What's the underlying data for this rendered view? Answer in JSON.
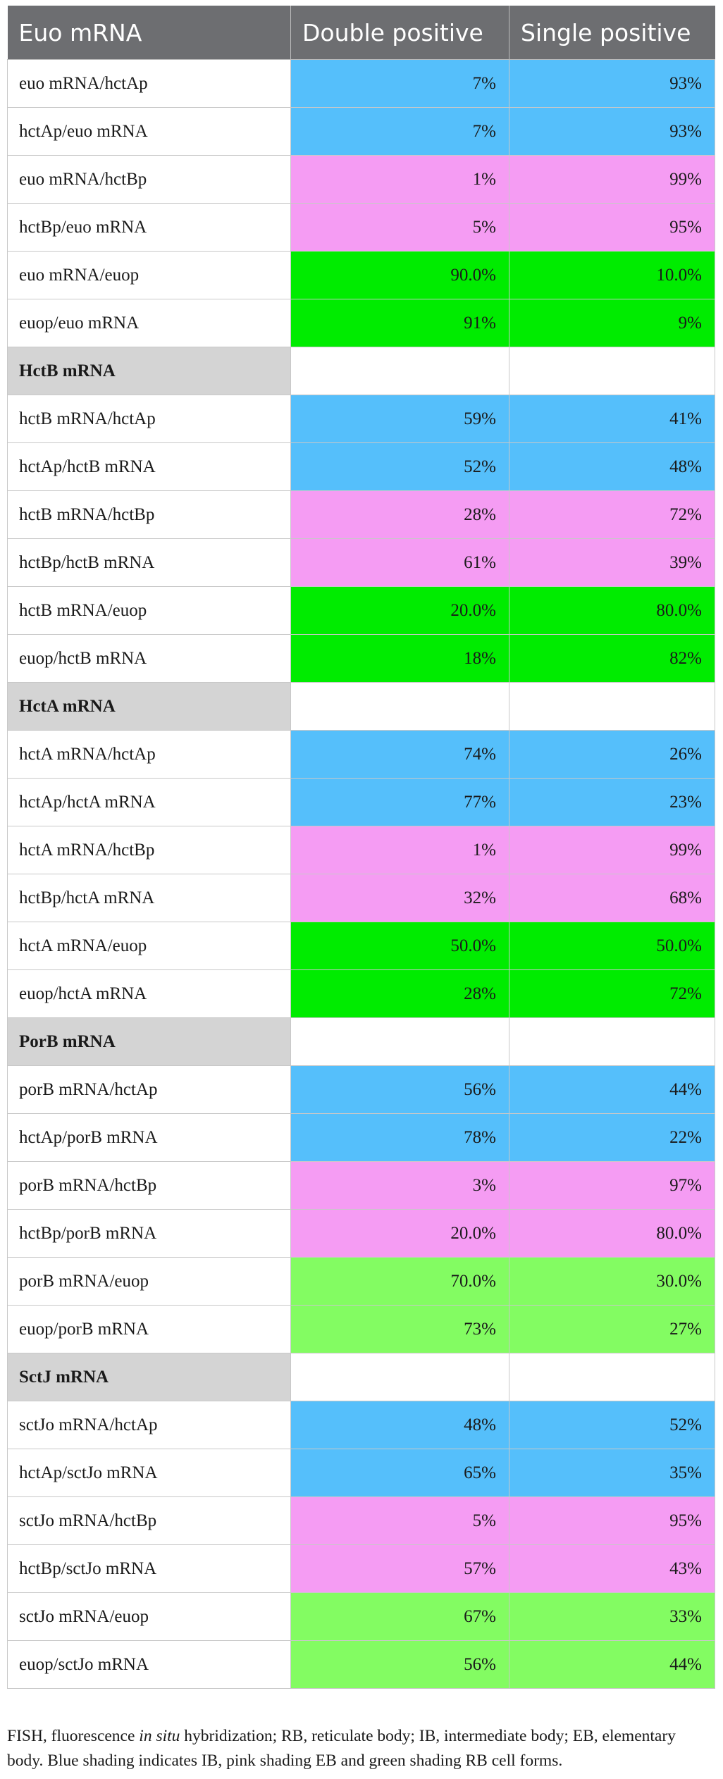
{
  "colors": {
    "header_bg": "#6d6e71",
    "section_bg": "#d4d4d4",
    "blue": "#55bffb",
    "pink": "#f59cf3",
    "green": "#00ec00",
    "light_green": "#83fc62"
  },
  "header": [
    "Euo mRNA",
    "Double positive",
    "Single positive"
  ],
  "rows": [
    {
      "type": "data",
      "label": "euo mRNA/hctAp",
      "double": "7%",
      "single": "93%",
      "shade": "blue"
    },
    {
      "type": "data",
      "label": "hctAp/euo mRNA",
      "double": "7%",
      "single": "93%",
      "shade": "blue"
    },
    {
      "type": "data",
      "label": "euo mRNA/hctBp",
      "double": "1%",
      "single": "99%",
      "shade": "pink"
    },
    {
      "type": "data",
      "label": "hctBp/euo mRNA",
      "double": "5%",
      "single": "95%",
      "shade": "pink"
    },
    {
      "type": "data",
      "label": "euo mRNA/euop",
      "double": "90.0%",
      "single": "10.0%",
      "shade": "green"
    },
    {
      "type": "data",
      "label": "euop/euo mRNA",
      "double": "91%",
      "single": "9%",
      "shade": "green"
    },
    {
      "type": "section",
      "label": "HctB mRNA"
    },
    {
      "type": "data",
      "label": "hctB mRNA/hctAp",
      "double": "59%",
      "single": "41%",
      "shade": "blue"
    },
    {
      "type": "data",
      "label": "hctAp/hctB mRNA",
      "double": "52%",
      "single": "48%",
      "shade": "blue"
    },
    {
      "type": "data",
      "label": "hctB mRNA/hctBp",
      "double": "28%",
      "single": "72%",
      "shade": "pink"
    },
    {
      "type": "data",
      "label": "hctBp/hctB mRNA",
      "double": "61%",
      "single": "39%",
      "shade": "pink"
    },
    {
      "type": "data",
      "label": "hctB mRNA/euop",
      "double": "20.0%",
      "single": "80.0%",
      "shade": "green"
    },
    {
      "type": "data",
      "label": "euop/hctB mRNA",
      "double": "18%",
      "single": "82%",
      "shade": "green"
    },
    {
      "type": "section",
      "label": "HctA mRNA"
    },
    {
      "type": "data",
      "label": "hctA mRNA/hctAp",
      "double": "74%",
      "single": "26%",
      "shade": "blue"
    },
    {
      "type": "data",
      "label": "hctAp/hctA mRNA",
      "double": "77%",
      "single": "23%",
      "shade": "blue"
    },
    {
      "type": "data",
      "label": "hctA mRNA/hctBp",
      "double": "1%",
      "single": "99%",
      "shade": "pink"
    },
    {
      "type": "data",
      "label": "hctBp/hctA mRNA",
      "double": "32%",
      "single": "68%",
      "shade": "pink"
    },
    {
      "type": "data",
      "label": "hctA mRNA/euop",
      "double": "50.0%",
      "single": "50.0%",
      "shade": "green"
    },
    {
      "type": "data",
      "label": "euop/hctA mRNA",
      "double": "28%",
      "single": "72%",
      "shade": "green"
    },
    {
      "type": "section",
      "label": "PorB mRNA"
    },
    {
      "type": "data",
      "label": "porB mRNA/hctAp",
      "double": "56%",
      "single": "44%",
      "shade": "blue"
    },
    {
      "type": "data",
      "label": "hctAp/porB mRNA",
      "double": "78%",
      "single": "22%",
      "shade": "blue"
    },
    {
      "type": "data",
      "label": "porB mRNA/hctBp",
      "double": "3%",
      "single": "97%",
      "shade": "pink"
    },
    {
      "type": "data",
      "label": "hctBp/porB mRNA",
      "double": "20.0%",
      "single": "80.0%",
      "shade": "pink"
    },
    {
      "type": "data",
      "label": "porB mRNA/euop",
      "double": "70.0%",
      "single": "30.0%",
      "shade": "lgreen"
    },
    {
      "type": "data",
      "label": "euop/porB mRNA",
      "double": "73%",
      "single": "27%",
      "shade": "lgreen"
    },
    {
      "type": "section",
      "label": "SctJ mRNA"
    },
    {
      "type": "data",
      "label": "sctJo mRNA/hctAp",
      "double": "48%",
      "single": "52%",
      "shade": "blue"
    },
    {
      "type": "data",
      "label": "hctAp/sctJo mRNA",
      "double": "65%",
      "single": "35%",
      "shade": "blue"
    },
    {
      "type": "data",
      "label": "sctJo mRNA/hctBp",
      "double": "5%",
      "single": "95%",
      "shade": "pink"
    },
    {
      "type": "data",
      "label": "hctBp/sctJo mRNA",
      "double": "57%",
      "single": "43%",
      "shade": "pink"
    },
    {
      "type": "data",
      "label": "sctJo mRNA/euop",
      "double": "67%",
      "single": "33%",
      "shade": "lgreen"
    },
    {
      "type": "data",
      "label": "euop/sctJo mRNA",
      "double": "56%",
      "single": "44%",
      "shade": "lgreen"
    }
  ],
  "footnote": {
    "part1": "FISH, fluorescence ",
    "italic": "in situ",
    "part2": " hybridization; RB, reticulate body; IB, intermediate body; EB, elementary body. Blue shading indicates IB, pink shading EB and green shading RB cell forms."
  }
}
